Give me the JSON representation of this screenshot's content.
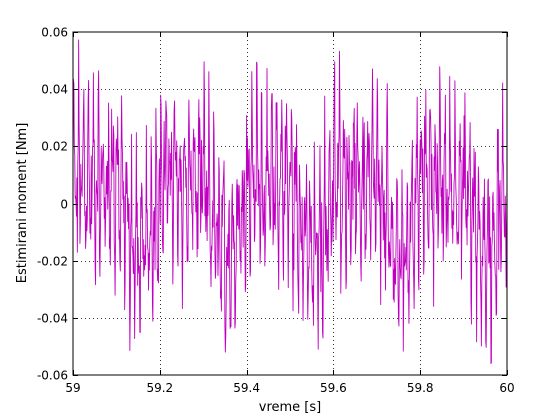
{
  "chart_data": {
    "type": "line",
    "title": "",
    "xlabel": "vreme [s]",
    "ylabel": "Estimirani moment [Nm]",
    "xlim": [
      59,
      60
    ],
    "ylim": [
      -0.06,
      0.06
    ],
    "x_ticks": [
      59,
      59.2,
      59.4,
      59.6,
      59.8,
      60
    ],
    "x_tick_labels": [
      "59",
      "59.2",
      "59.4",
      "59.6",
      "59.8",
      "60"
    ],
    "y_ticks": [
      -0.06,
      -0.04,
      -0.02,
      0,
      0.02,
      0.04,
      0.06
    ],
    "y_tick_labels": [
      "-0.06",
      "-0.04",
      "-0.02",
      "0",
      "0.02",
      "0.04",
      "0.06"
    ],
    "grid": true,
    "grid_style": "dotted",
    "legend": "none",
    "series": [
      {
        "color": "#c000c0",
        "description": "dense oscillating torque signal, roughly periodic with period ~0.2 s",
        "x_start": 59,
        "x_end": 60,
        "samples": 1000,
        "min": -0.056,
        "max": 0.059
      }
    ]
  }
}
